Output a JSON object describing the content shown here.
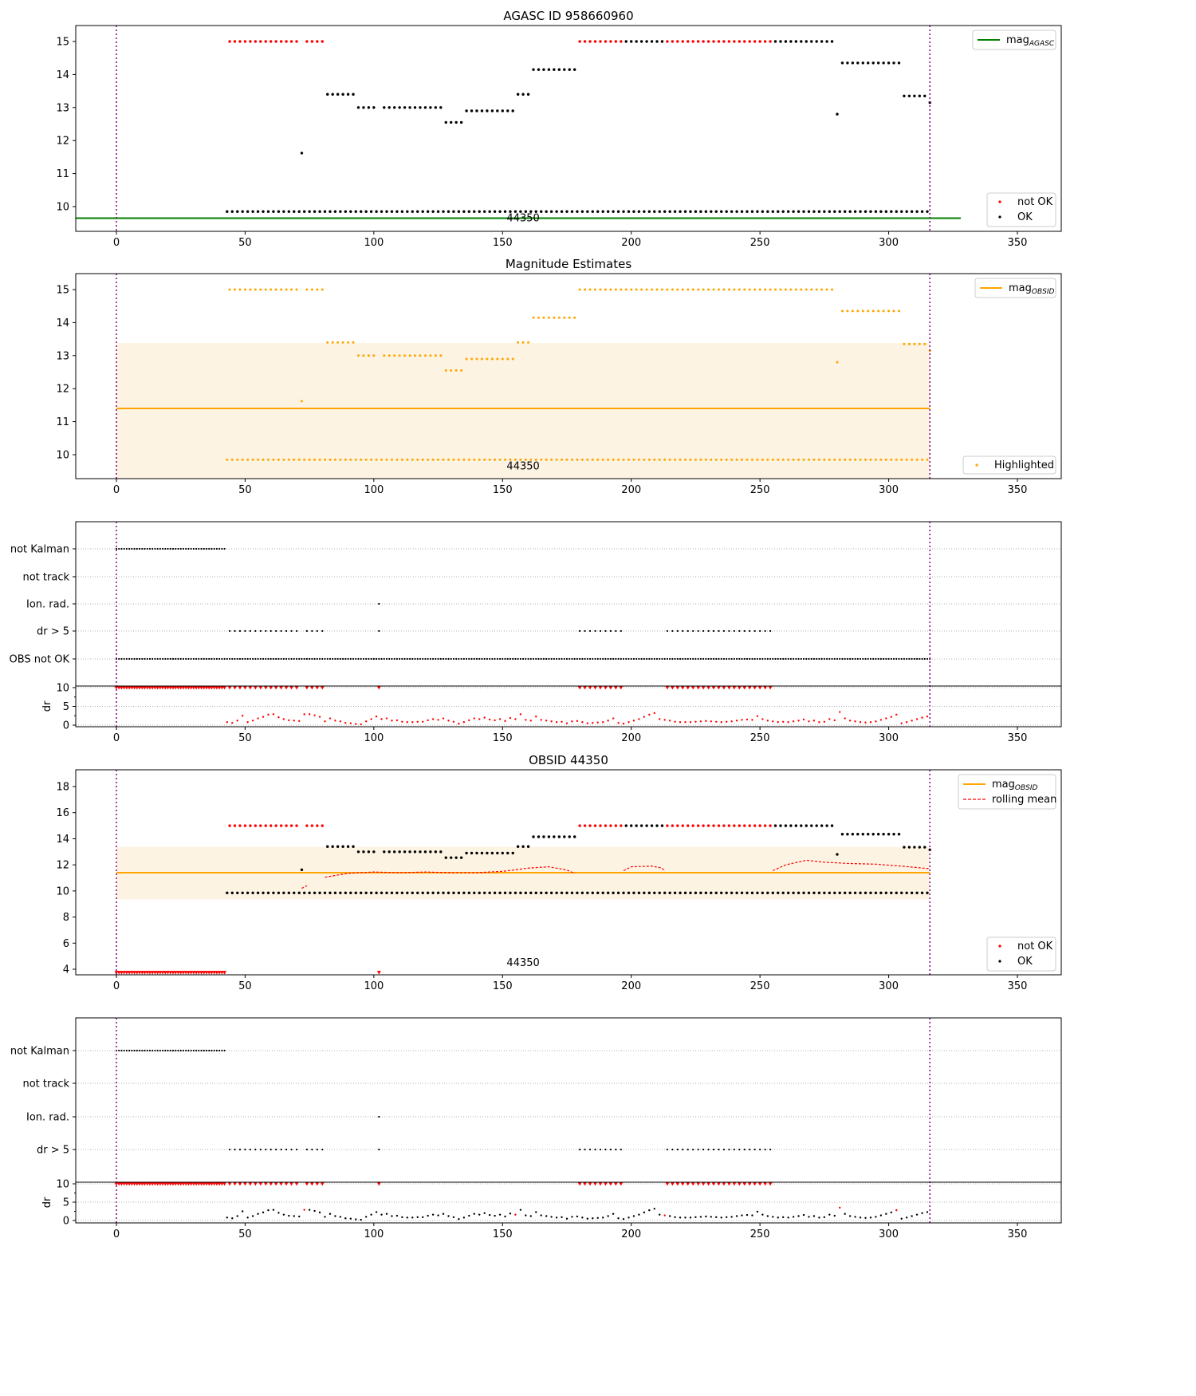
{
  "chart_data": {
    "type": "scatter",
    "xlim": [
      -15.8,
      367
    ],
    "x_ticks": [
      0,
      50,
      100,
      150,
      200,
      250,
      300,
      350
    ],
    "vlines": [
      0,
      316
    ],
    "annotation": "44350",
    "annotation_x": 158,
    "colors": {
      "ok": "#000000",
      "not_ok": "#ff0000",
      "agasc": "#008000",
      "obsid": "#ffa500",
      "band": "#fdf3e3",
      "vline": "#800080",
      "grid": "#b0b0b0"
    },
    "mag_points": [
      [
        44,
        70,
        15,
        false
      ],
      [
        74,
        80,
        15,
        false
      ],
      [
        72,
        72,
        11.62,
        true
      ],
      [
        82,
        92,
        13.4,
        true
      ],
      [
        94,
        100,
        13.0,
        true
      ],
      [
        104,
        126,
        13.0,
        true
      ],
      [
        128,
        134,
        12.55,
        true
      ],
      [
        136,
        154,
        12.9,
        true
      ],
      [
        156,
        160,
        13.4,
        true
      ],
      [
        162,
        178,
        14.15,
        true
      ],
      [
        180,
        196,
        15,
        false
      ],
      [
        198,
        212,
        15,
        true
      ],
      [
        214,
        254,
        15,
        false
      ],
      [
        256,
        278,
        15,
        true
      ],
      [
        280,
        280,
        12.8,
        true
      ],
      [
        282,
        304,
        14.35,
        true
      ],
      [
        306,
        314,
        13.35,
        true
      ],
      [
        316,
        316,
        13.15,
        true
      ],
      [
        43,
        315,
        9.85,
        true
      ]
    ],
    "not_kalman_points_obsid": [
      [
        0,
        42,
        3.75,
        false,
        1
      ],
      [
        102,
        102,
        3.75,
        false,
        1
      ]
    ],
    "mag_agasc": 9.65,
    "mag_obsid": 11.4,
    "mag_obsid_band": [
      9.35,
      13.38
    ],
    "rolling_mean": [
      [
        [
          72,
          10.2
        ],
        [
          74,
          10.4
        ]
      ],
      [
        [
          81,
          11.05
        ],
        [
          90,
          11.35
        ],
        [
          100,
          11.45
        ],
        [
          110,
          11.4
        ],
        [
          120,
          11.45
        ],
        [
          130,
          11.4
        ],
        [
          140,
          11.4
        ],
        [
          150,
          11.5
        ],
        [
          160,
          11.75
        ],
        [
          168,
          11.85
        ],
        [
          175,
          11.6
        ],
        [
          178,
          11.35
        ]
      ],
      [
        [
          197,
          11.55
        ],
        [
          200,
          11.85
        ],
        [
          208,
          11.9
        ],
        [
          212,
          11.75
        ],
        [
          213,
          11.5
        ]
      ],
      [
        [
          255,
          11.55
        ],
        [
          260,
          12.0
        ],
        [
          268,
          12.35
        ],
        [
          275,
          12.2
        ],
        [
          285,
          12.1
        ],
        [
          295,
          12.05
        ],
        [
          305,
          11.9
        ],
        [
          316,
          11.7
        ]
      ]
    ],
    "flags": {
      "not_kalman": [
        [
          0,
          42,
          1
        ]
      ],
      "not_track": [],
      "ion_rad": [
        [
          102,
          102,
          1
        ]
      ],
      "dr_gt_5": [
        [
          44,
          70,
          2
        ],
        [
          74,
          80,
          2
        ],
        [
          102,
          102,
          1
        ],
        [
          180,
          196,
          2
        ],
        [
          214,
          254,
          2
        ]
      ],
      "obs_not_ok": [
        [
          0,
          316,
          1
        ]
      ]
    },
    "dr_x_start": 43,
    "dr_x_step": 2,
    "dr_values": [
      0.8,
      0.6,
      1.2,
      2.5,
      0.8,
      1.2,
      1.8,
      2.2,
      2.8,
      2.9,
      2.1,
      1.6,
      1.3,
      1.2,
      1.1,
      2.9,
      2.9,
      2.6,
      2.2,
      1.0,
      1.8,
      1.2,
      1.0,
      0.6,
      0.5,
      0.3,
      0.2,
      1.0,
      1.6,
      2.3,
      1.6,
      1.8,
      1.2,
      1.3,
      0.9,
      0.8,
      0.8,
      0.9,
      0.9,
      1.3,
      1.6,
      1.4,
      1.8,
      1.2,
      0.9,
      0.4,
      0.8,
      1.3,
      1.8,
      1.6,
      2.0,
      1.5,
      1.3,
      1.6,
      1.1,
      1.9,
      1.6,
      2.9,
      1.4,
      1.2,
      2.3,
      1.4,
      1.2,
      1.0,
      0.8,
      0.9,
      0.5,
      1.0,
      1.1,
      0.8,
      0.5,
      0.6,
      0.7,
      0.8,
      1.2,
      1.8,
      0.6,
      0.4,
      0.8,
      1.2,
      1.6,
      2.2,
      2.8,
      3.2,
      1.6,
      1.4,
      1.2,
      0.9,
      0.8,
      0.8,
      0.8,
      0.9,
      1.0,
      1.1,
      1.0,
      0.9,
      0.8,
      0.9,
      1.0,
      1.2,
      1.4,
      1.5,
      1.4,
      2.4,
      1.6,
      1.2,
      1.0,
      0.8,
      0.9,
      0.8,
      1.0,
      1.2,
      1.5,
      1.0,
      1.2,
      0.8,
      0.9,
      1.6,
      1.3,
      3.5,
      1.8,
      1.2,
      1.0,
      0.8,
      0.7,
      0.8,
      1.0,
      1.4,
      1.8,
      2.2,
      2.8,
      0.5,
      0.8,
      1.2,
      1.6,
      2.0,
      2.3
    ],
    "dr_red_x_obsid_panel": [
      73,
      155,
      213,
      281,
      303
    ],
    "dr_ylabel": "dr",
    "dr_yticks": [
      0,
      5,
      10
    ],
    "panels": [
      {
        "id": "agasc",
        "title": "AGASC ID 958660960",
        "ylim": [
          9.27,
          15.48
        ],
        "yticks": [
          10,
          11,
          12,
          13,
          14,
          15
        ],
        "legend_line": {
          "label": "mag",
          "sub": "AGASC"
        },
        "legend_points": [
          {
            "label": "not OK"
          },
          {
            "label": "OK"
          }
        ]
      },
      {
        "id": "estimates",
        "title": "Magnitude Estimates",
        "ylim": [
          9.27,
          15.48
        ],
        "yticks": [
          10,
          11,
          12,
          13,
          14,
          15
        ],
        "legend_line": {
          "label": "mag",
          "sub": "OBSID"
        },
        "legend_points": [
          {
            "label": "Highlighted"
          }
        ]
      },
      {
        "id": "flags1",
        "rows": [
          "not Kalman",
          "not track",
          "Ion. rad.",
          "dr > 5",
          "OBS not OK"
        ]
      },
      {
        "id": "obsid",
        "title": "OBSID 44350",
        "ylim": [
          3.57,
          19.28
        ],
        "yticks": [
          4,
          6,
          8,
          10,
          12,
          14,
          16,
          18
        ],
        "legend_line": {
          "label": "mag",
          "sub": "OBSID"
        },
        "legend_dash": {
          "label": "rolling mean"
        },
        "legend_points": [
          {
            "label": "not OK"
          },
          {
            "label": "OK"
          }
        ]
      },
      {
        "id": "flags2",
        "rows": [
          "not Kalman",
          "not track",
          "Ion. rad.",
          "dr > 5"
        ]
      }
    ]
  }
}
